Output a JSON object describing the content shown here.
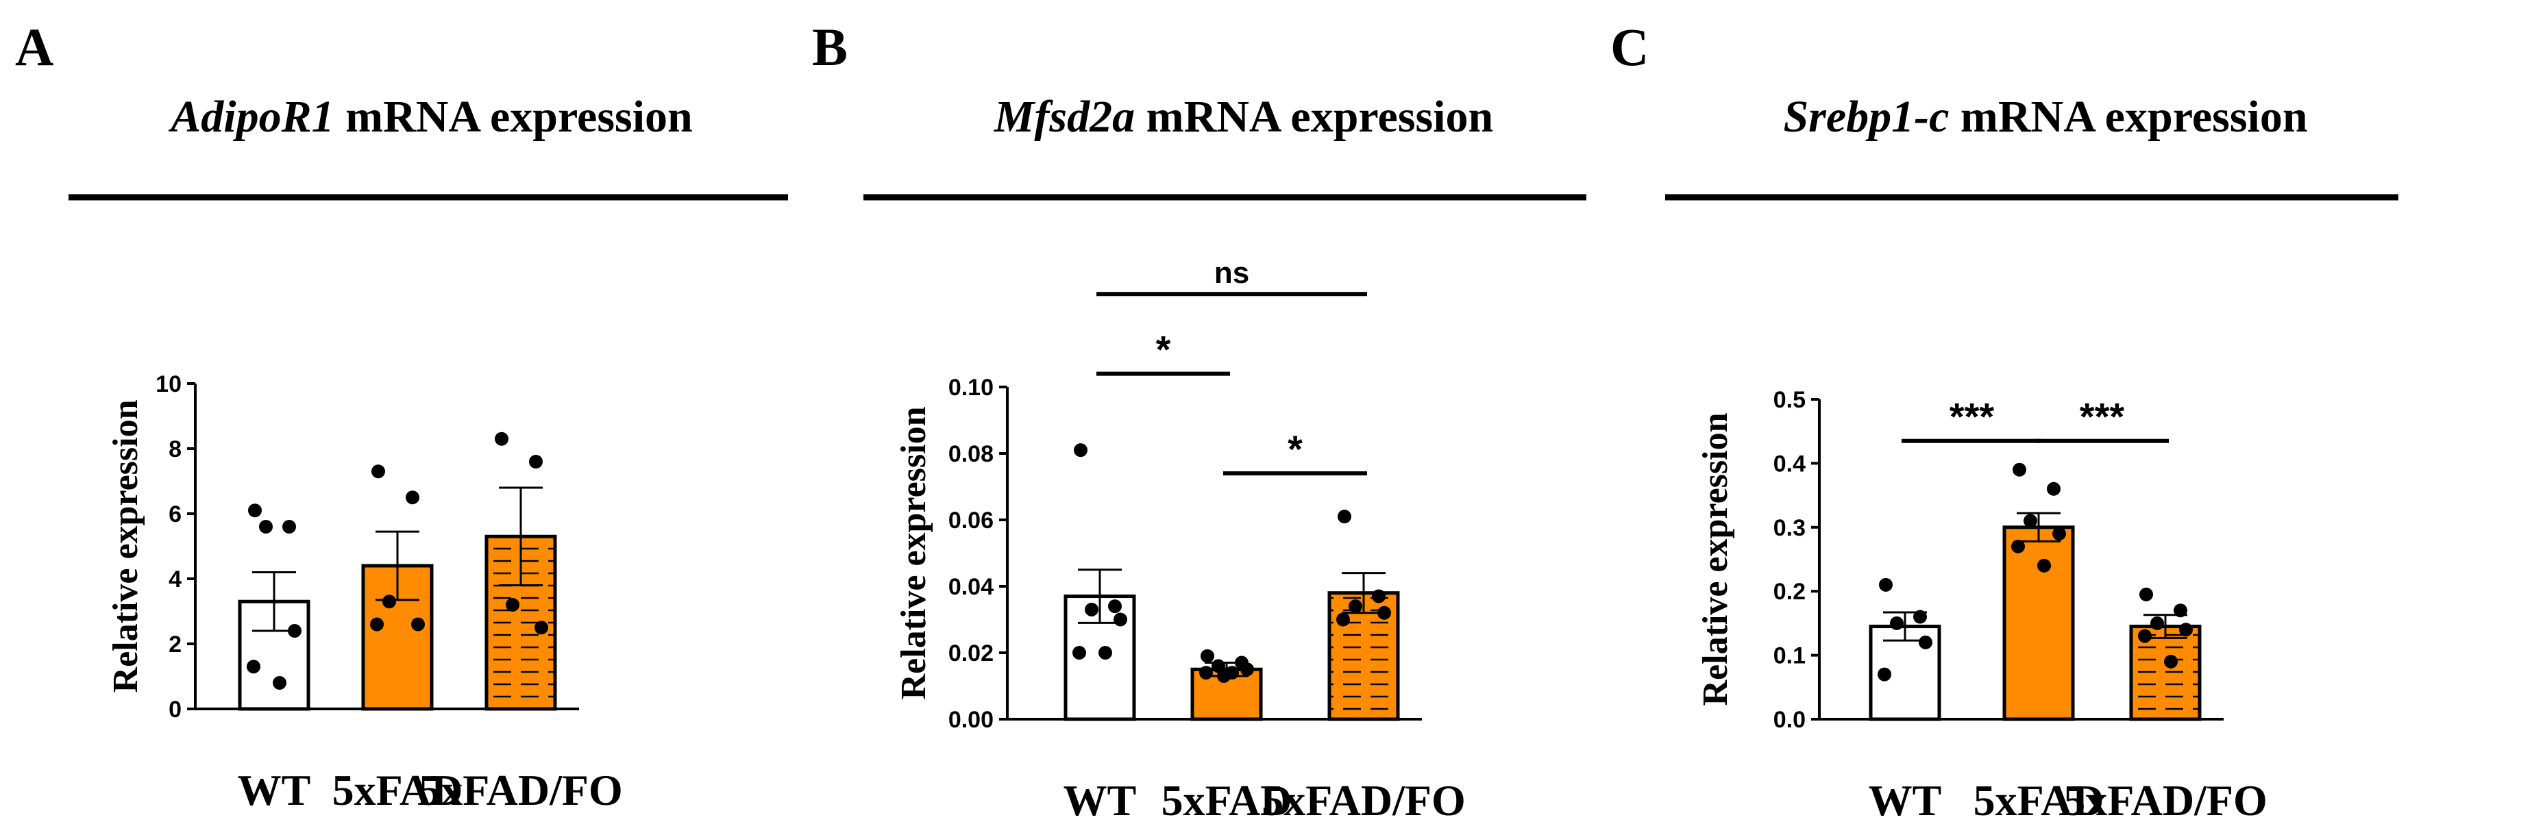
{
  "chart_data": [
    {
      "type": "bar",
      "panel_label": "A",
      "title_gene": "AdipoR1",
      "title_rest": " mRNA expression",
      "ylabel": "Relative expression",
      "categories": [
        "WT",
        "5xFAD",
        "5xFAD/FO"
      ],
      "values": [
        3.3,
        4.4,
        5.3
      ],
      "sem": [
        0.9,
        1.05,
        1.5
      ],
      "points": [
        [
          6.1,
          5.6,
          5.6,
          2.4,
          1.3,
          0.8
        ],
        [
          7.3,
          6.5,
          3.3,
          2.6,
          2.6
        ],
        [
          8.3,
          7.6,
          3.2,
          2.5
        ]
      ],
      "ylim": [
        0,
        10
      ],
      "yticks": [
        "0",
        "2",
        "4",
        "6",
        "8",
        "10"
      ],
      "yticks_values": [
        0,
        2,
        4,
        6,
        8,
        10
      ],
      "significance": []
    },
    {
      "type": "bar",
      "panel_label": "B",
      "title_gene": "Mfsd2a",
      "title_rest": " mRNA expression",
      "ylabel": "Relative expression",
      "categories": [
        "WT",
        "5xFAD",
        "5xFAD/FO"
      ],
      "values": [
        0.037,
        0.015,
        0.038
      ],
      "sem": [
        0.008,
        0.002,
        0.006
      ],
      "points": [
        [
          0.081,
          0.034,
          0.033,
          0.03,
          0.02,
          0.02
        ],
        [
          0.019,
          0.017,
          0.016,
          0.015,
          0.014,
          0.014,
          0.013
        ],
        [
          0.061,
          0.037,
          0.034,
          0.032,
          0.03
        ]
      ],
      "ylim": [
        0,
        0.1
      ],
      "yticks": [
        "0.00",
        "0.02",
        "0.04",
        "0.06",
        "0.08",
        "0.10"
      ],
      "yticks_values": [
        0,
        0.02,
        0.04,
        0.06,
        0.08,
        0.1
      ],
      "significance": [
        {
          "from": 0,
          "to": 2,
          "label": "ns",
          "level": 0.128
        },
        {
          "from": 0,
          "to": 1,
          "label": "*",
          "level": 0.104
        },
        {
          "from": 1,
          "to": 2,
          "label": "*",
          "level": 0.074
        }
      ]
    },
    {
      "type": "bar",
      "panel_label": "C",
      "title_gene": "Srebp1-c",
      "title_rest": " mRNA expression",
      "ylabel": "Relative expression",
      "categories": [
        "WT",
        "5xFAD",
        "5xFAD/FO"
      ],
      "values": [
        0.145,
        0.3,
        0.145
      ],
      "sem": [
        0.022,
        0.022,
        0.018
      ],
      "points": [
        [
          0.21,
          0.16,
          0.15,
          0.12,
          0.07
        ],
        [
          0.39,
          0.36,
          0.31,
          0.29,
          0.27,
          0.24
        ],
        [
          0.195,
          0.17,
          0.15,
          0.14,
          0.13,
          0.09
        ]
      ],
      "ylim": [
        0,
        0.5
      ],
      "yticks": [
        "0.0",
        "0.1",
        "0.2",
        "0.3",
        "0.4",
        "0.5"
      ],
      "yticks_values": [
        0,
        0.1,
        0.2,
        0.3,
        0.4,
        0.5
      ],
      "significance": [
        {
          "from": 0,
          "to": 1,
          "label": "***",
          "level": 0.435
        },
        {
          "from": 1,
          "to": 2,
          "label": "***",
          "level": 0.435
        }
      ]
    }
  ],
  "colors": {
    "wt_fill": "#ffffff",
    "fad_fill": "#ff8c00",
    "fo_fill": "#ff8c00",
    "fo_hatch": "#000000",
    "stroke": "#000000"
  }
}
